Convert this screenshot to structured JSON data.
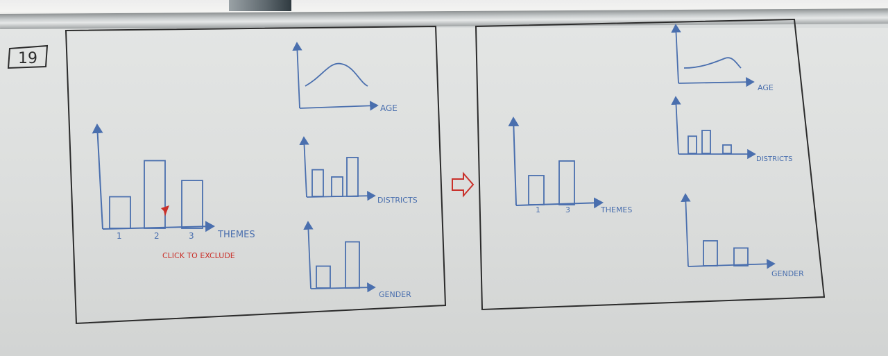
{
  "slide_number": "19",
  "left_panel": {
    "main_chart": {
      "xlabel": "THEMES",
      "tick_labels": [
        "1",
        "2",
        "3"
      ],
      "bars": [
        {
          "category": "1",
          "value": 0.35
        },
        {
          "category": "2",
          "value": 0.75
        },
        {
          "category": "3",
          "value": 0.53
        }
      ],
      "annotation": "CLICK TO EXCLUDE"
    },
    "age_chart": {
      "xlabel": "AGE"
    },
    "districts_chart": {
      "xlabel": "DISTRICTS",
      "bars": [
        0.48,
        0.35,
        0.7
      ]
    },
    "gender_chart": {
      "xlabel": "GENDER",
      "bars": [
        0.45,
        0.95
      ]
    }
  },
  "arrow": "→",
  "right_panel": {
    "main_chart": {
      "xlabel": "THEMES",
      "tick_labels": [
        "1",
        "3"
      ],
      "bars": [
        {
          "category": "1",
          "value": 0.3
        },
        {
          "category": "3",
          "value": 0.45
        }
      ]
    },
    "age_chart": {
      "xlabel": "AGE"
    },
    "districts_chart": {
      "xlabel": "DISTRICTS",
      "bars": [
        0.45,
        0.6,
        0.22
      ]
    },
    "gender_chart": {
      "xlabel": "GENDER",
      "bars": [
        0.45,
        0.32
      ]
    }
  },
  "colors": {
    "marker_blue": "#4a6fae",
    "marker_red": "#c9302a",
    "marker_black": "#2b2b2b"
  }
}
